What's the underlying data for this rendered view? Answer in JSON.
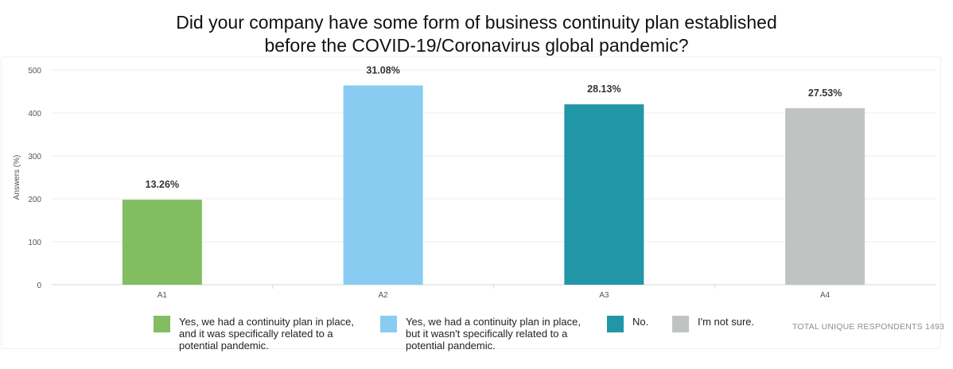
{
  "title_lines": [
    "Did your company have some form of business continuity plan established",
    "before the COVID-19/Coronavirus global pandemic?"
  ],
  "chart_data": {
    "type": "bar",
    "title": "Did your company have some form of business continuity plan established before the COVID-19/Coronavirus global pandemic?",
    "xlabel": "",
    "ylabel": "Answers (%)",
    "ylim": [
      0,
      500
    ],
    "yticks": [
      "0",
      "100",
      "200",
      "300",
      "400",
      "500"
    ],
    "grid": true,
    "categories": [
      "A1",
      "A2",
      "A3",
      "A4"
    ],
    "values": [
      198,
      464,
      420,
      411
    ],
    "data_labels": [
      "13.26%",
      "31.08%",
      "28.13%",
      "27.53%"
    ],
    "colors": [
      "#82bd62",
      "#88cdf1",
      "#2196a6",
      "#bfc4c3"
    ],
    "legend_position": "bottom"
  },
  "legend": [
    {
      "label": "Yes, we had a continuity plan in place,\nand it was specifically related to a\npotential pandemic.",
      "color": "#82bd62"
    },
    {
      "label": "Yes, we had a continuity plan in place,\nbut it wasn't specifically related to a\npotential pandemic.",
      "color": "#88cdf1"
    },
    {
      "label": "No.",
      "color": "#2196a6"
    },
    {
      "label": "I'm not sure.",
      "color": "#bfc4c3"
    }
  ],
  "footnote": "TOTAL UNIQUE RESPONDENTS 1493"
}
